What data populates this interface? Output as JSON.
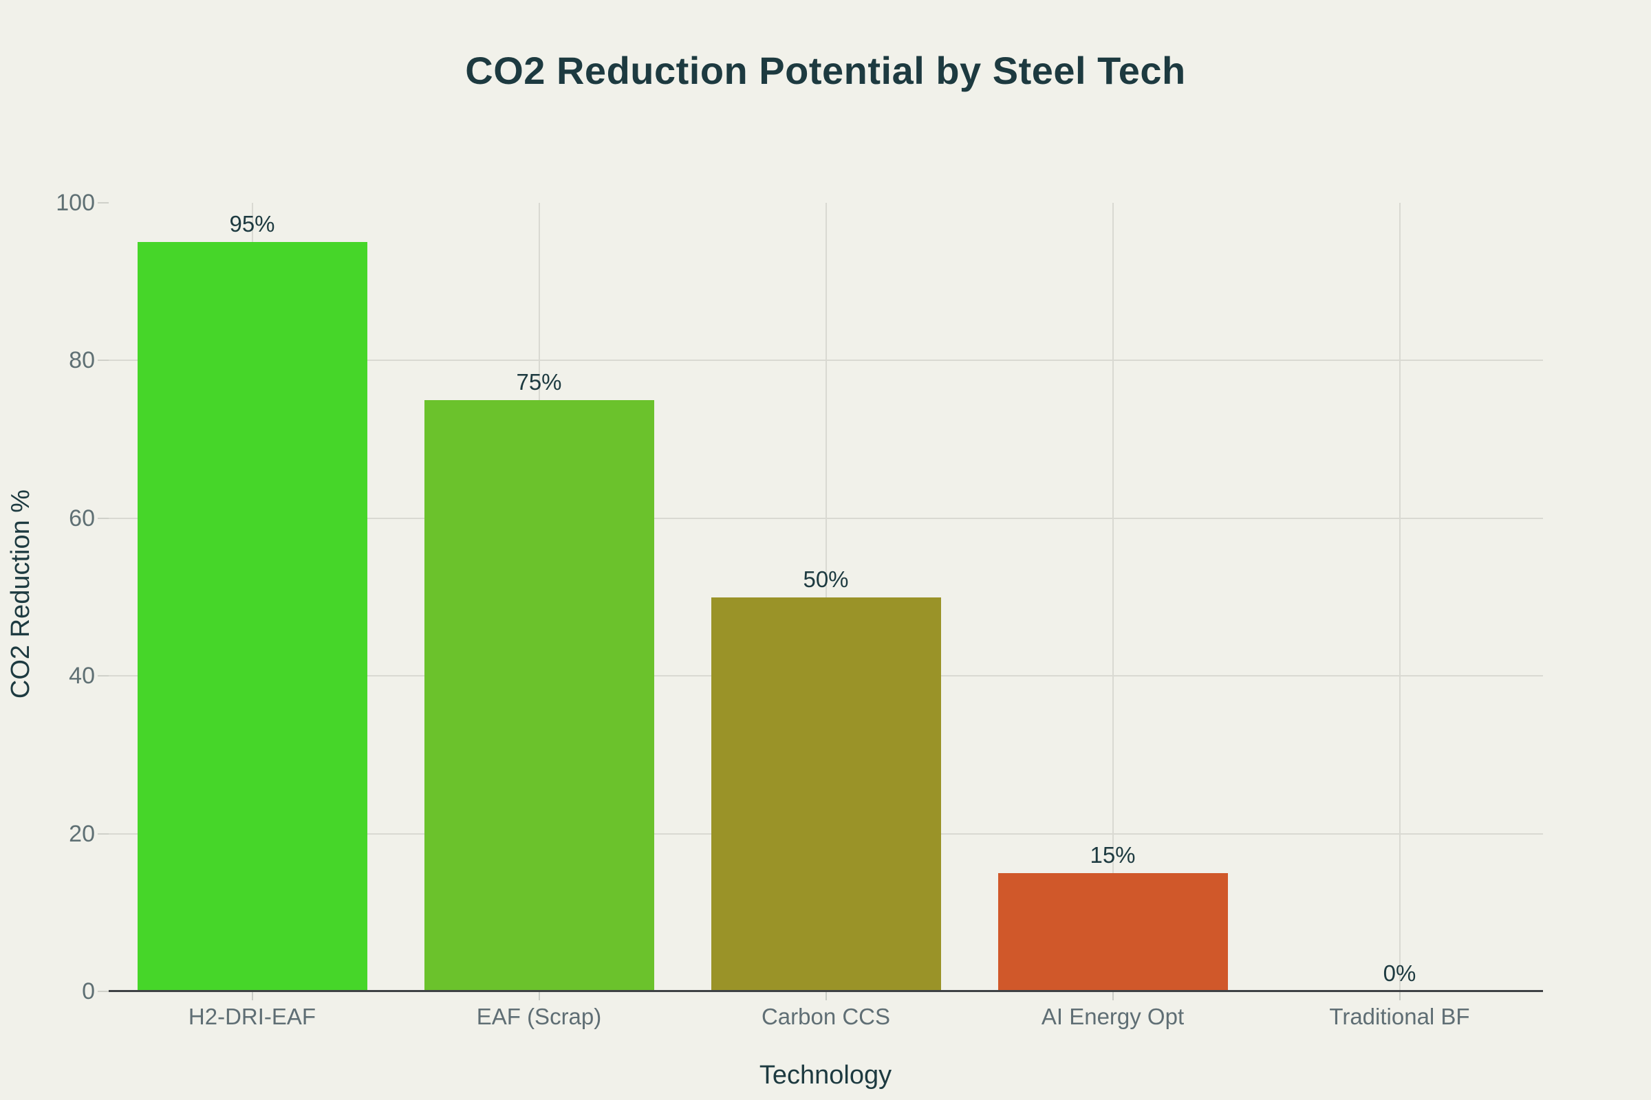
{
  "chart_data": {
    "type": "bar",
    "title": "CO2 Reduction Potential by Steel Tech",
    "xlabel": "Technology",
    "ylabel": "CO2 Reduction %",
    "categories": [
      "H2-DRI-EAF",
      "EAF (Scrap)",
      "Carbon CCS",
      "AI Energy Opt",
      "Traditional BF"
    ],
    "values": [
      95,
      75,
      50,
      15,
      0
    ],
    "value_labels": [
      "95%",
      "75%",
      "50%",
      "15%",
      "0%"
    ],
    "bar_colors": [
      "#46d629",
      "#6bc22c",
      "#9a9328",
      "#d0582a",
      ""
    ],
    "ylim": [
      0,
      100
    ],
    "yticks": [
      0,
      20,
      40,
      60,
      80,
      100
    ],
    "grid": true,
    "legend": "none"
  },
  "colors": {
    "background": "#f1f1ea",
    "title_text": "#1d3a40",
    "tick_text": "#5f7074",
    "category_text": "#5f6e74",
    "gridline": "#d9d9d2",
    "axis_line": "#3f4245"
  }
}
